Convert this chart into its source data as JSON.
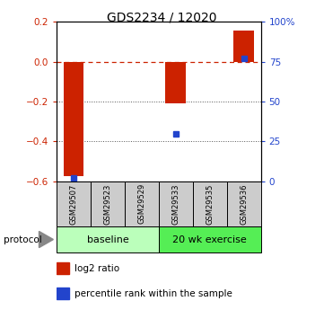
{
  "title": "GDS2234 / 12020",
  "samples": [
    "GSM29507",
    "GSM29523",
    "GSM29529",
    "GSM29533",
    "GSM29535",
    "GSM29536"
  ],
  "log2_ratios": [
    -0.575,
    0.0,
    0.0,
    -0.21,
    0.0,
    0.155
  ],
  "percentile_ranks": [
    2.0,
    null,
    null,
    30.0,
    null,
    77.0
  ],
  "ylim_left": [
    -0.6,
    0.2
  ],
  "ylim_right": [
    0,
    100
  ],
  "yticks_left": [
    -0.6,
    -0.4,
    -0.2,
    0.0,
    0.2
  ],
  "yticks_right": [
    0,
    25,
    50,
    75,
    100
  ],
  "ytick_labels_right": [
    "0",
    "25",
    "50",
    "75",
    "100%"
  ],
  "bar_color": "#cc2200",
  "dot_color": "#2244cc",
  "hline_color": "#cc2200",
  "dotted_line_color": "#555555",
  "groups": [
    {
      "label": "baseline",
      "start": 0,
      "end": 3,
      "color": "#bbffbb"
    },
    {
      "label": "20 wk exercise",
      "start": 3,
      "end": 6,
      "color": "#55ee55"
    }
  ],
  "protocol_label": "protocol",
  "legend_items": [
    {
      "color": "#cc2200",
      "label": "log2 ratio"
    },
    {
      "color": "#2244cc",
      "label": "percentile rank within the sample"
    }
  ],
  "bar_width": 0.6,
  "sample_box_color": "#cccccc",
  "title_fontsize": 10,
  "axis_fontsize": 7.5,
  "sample_fontsize": 6,
  "group_fontsize": 8,
  "legend_fontsize": 7.5
}
